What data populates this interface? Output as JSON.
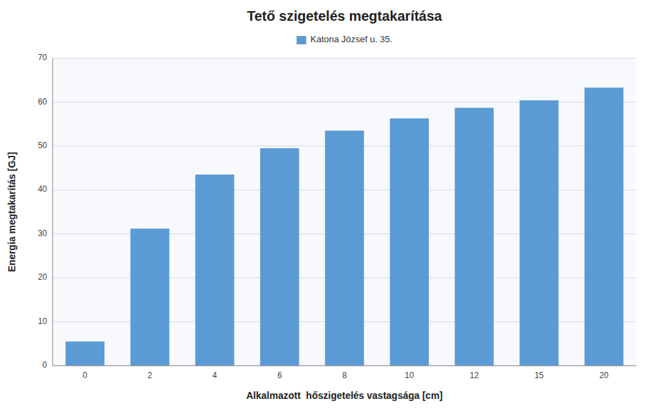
{
  "chart_data": {
    "type": "bar",
    "title": "Tető szigetelés megtakarítása",
    "xlabel": "Alkalmazott  hőszigetelés vastagsága [cm]",
    "ylabel": "Energia megtakarítás [GJ]",
    "categories": [
      "0",
      "2",
      "4",
      "6",
      "8",
      "10",
      "12",
      "15",
      "20"
    ],
    "series": [
      {
        "name": "Katona József u. 35.",
        "color": "#5B9BD5",
        "values": [
          5.5,
          31.2,
          43.5,
          49.5,
          53.5,
          56.3,
          58.7,
          60.4,
          63.3
        ]
      }
    ],
    "ylim": [
      0,
      70
    ],
    "yticks": [
      0,
      10,
      20,
      30,
      40,
      50,
      60,
      70
    ],
    "grid": true,
    "legend": "top"
  }
}
